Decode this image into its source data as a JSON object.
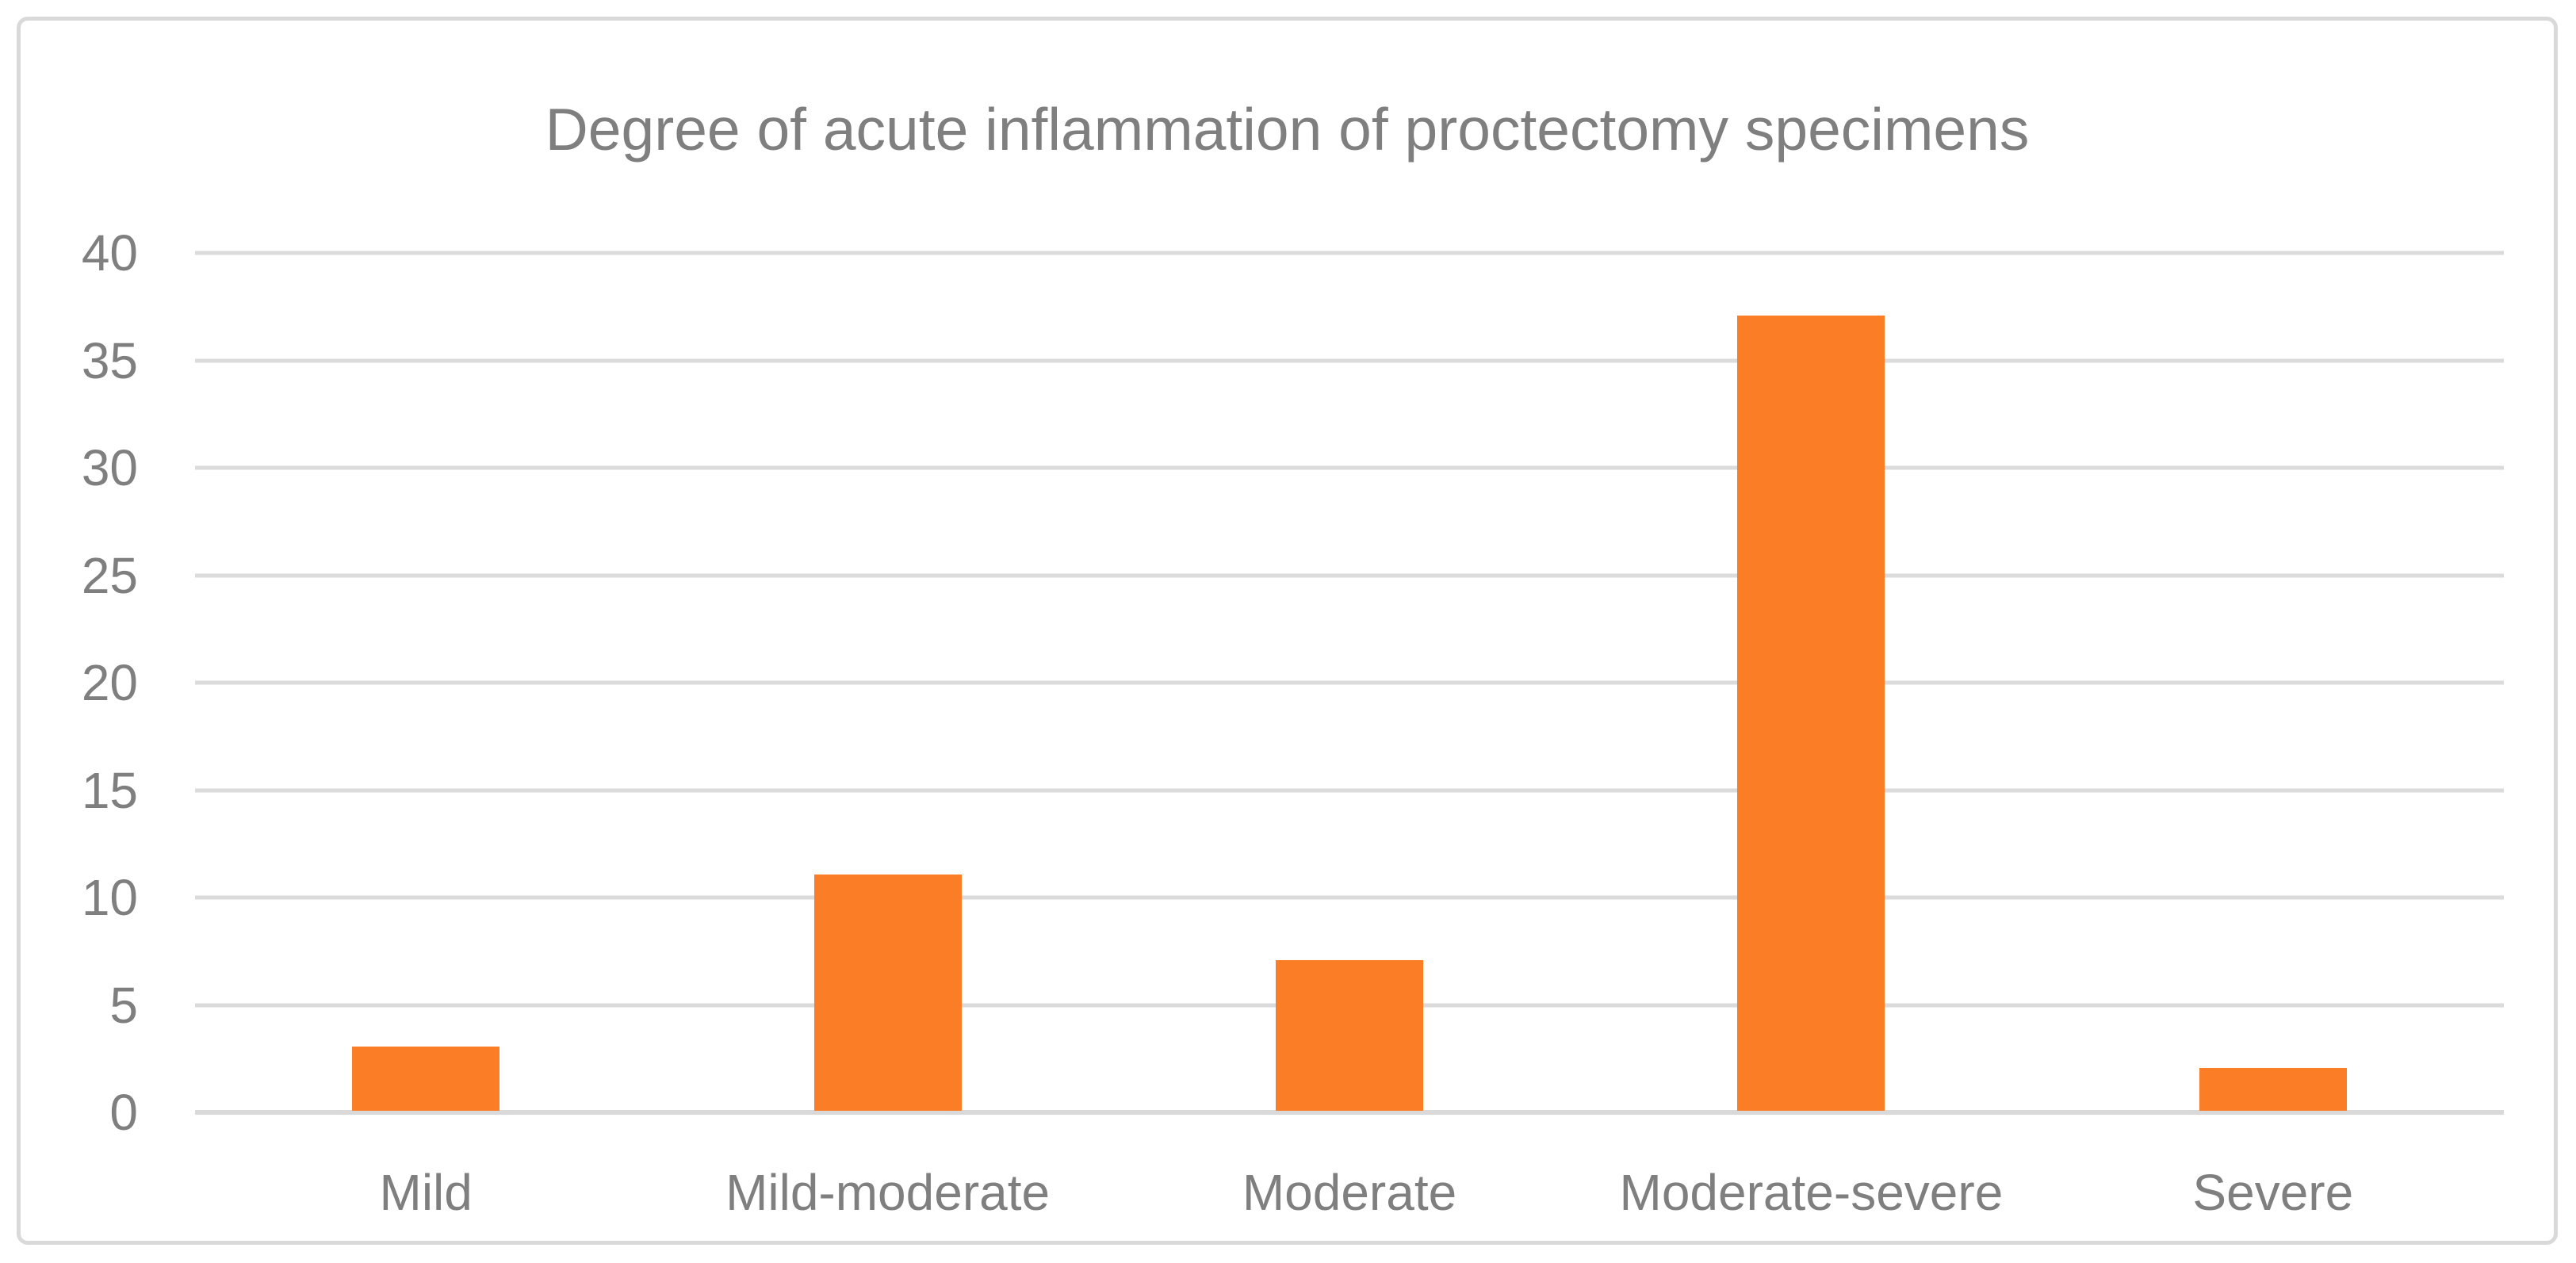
{
  "chart_data": {
    "type": "bar",
    "title": "Degree of acute inflammation of proctectomy specimens",
    "categories": [
      "Mild",
      "Mild-moderate",
      "Moderate",
      "Moderate-severe",
      "Severe"
    ],
    "values": [
      3,
      11,
      7,
      37,
      2
    ],
    "xlabel": "",
    "ylabel": "",
    "ylim": [
      0,
      40
    ],
    "ytick_step": 5,
    "ytick_labels": [
      "0",
      "5",
      "10",
      "15",
      "20",
      "25",
      "30",
      "35",
      "40"
    ],
    "grid": "horizontal",
    "legend": "none",
    "series_count": 1
  },
  "colors": {
    "bar_fill": "#FB7D26",
    "gridline": "#DBDBDB",
    "axis_line": "#D9D9D9",
    "text": "#7F7F7F",
    "chart_border": "#D9D9D9",
    "background": "#FFFFFF"
  }
}
